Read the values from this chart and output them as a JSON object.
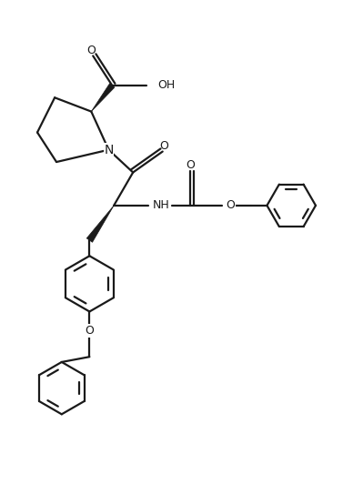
{
  "bg_color": "#ffffff",
  "line_color": "#1a1a1a",
  "line_width": 1.6,
  "figsize": [
    3.88,
    5.32
  ],
  "dpi": 100,
  "xlim": [
    0,
    10
  ],
  "ylim": [
    0,
    13.7
  ]
}
